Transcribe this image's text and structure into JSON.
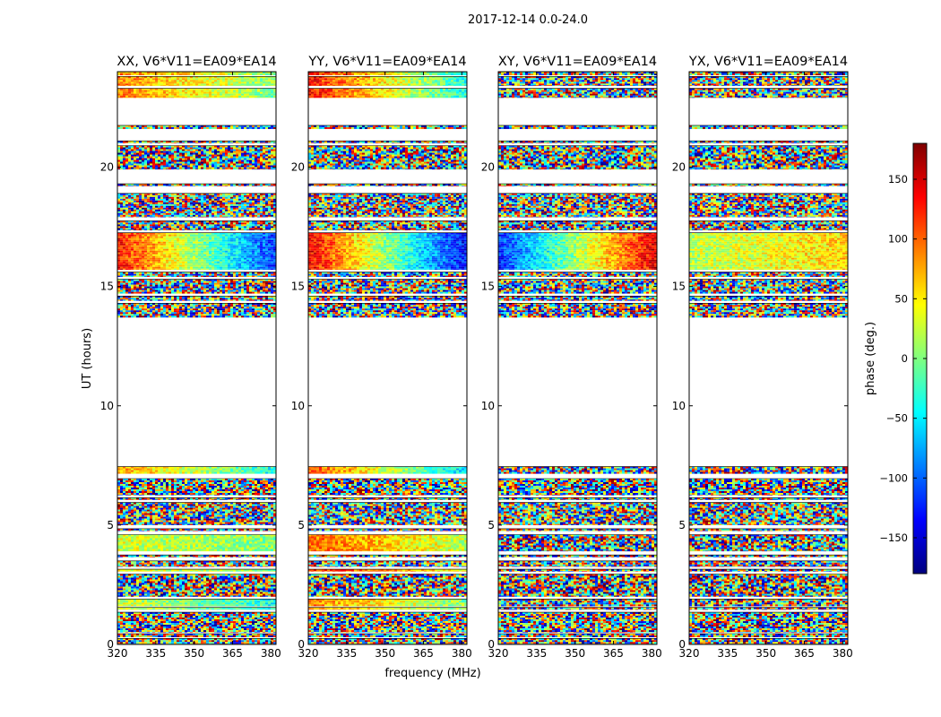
{
  "figure": {
    "suptitle": "2017-12-14 0.0-24.0",
    "xlabel": "frequency (MHz)",
    "ylabel": "UT (hours)"
  },
  "chart_data": {
    "type": "heatmap",
    "x": {
      "label": "frequency (MHz)",
      "range": [
        320,
        382
      ],
      "ticks": [
        320,
        335,
        350,
        365,
        380
      ]
    },
    "y": {
      "label": "UT (hours)",
      "range": [
        0,
        24
      ],
      "ticks": [
        0,
        5,
        10,
        15,
        20
      ]
    },
    "colorbar": {
      "label": "phase (deg.)",
      "range": [
        -180,
        180
      ],
      "ticks": [
        -150,
        -100,
        -50,
        0,
        50,
        100,
        150
      ],
      "tick_labels": [
        "−150",
        "−100",
        "−50",
        "0",
        "50",
        "100",
        "150"
      ],
      "colormap": [
        "#00007f",
        "#0000ff",
        "#007fff",
        "#00ffff",
        "#7fff7f",
        "#ffff00",
        "#ff7f00",
        "#ff0000",
        "#7f0000"
      ]
    },
    "panels": [
      {
        "title": "XX, V6*V11=EA09*EA14",
        "coherent_bands": [
          [
            16.0,
            17.2,
            130,
            -120
          ],
          [
            22.9,
            24.0,
            90,
            0
          ],
          [
            1.3,
            1.9,
            30,
            -40
          ],
          [
            3.0,
            3.2,
            40,
            0
          ],
          [
            4.0,
            4.6,
            30,
            0
          ],
          [
            7.2,
            7.5,
            80,
            -40
          ]
        ]
      },
      {
        "title": "YY, V6*V11=EA09*EA14",
        "coherent_bands": [
          [
            16.0,
            17.2,
            140,
            -140
          ],
          [
            22.9,
            24.0,
            130,
            -40
          ],
          [
            1.3,
            1.9,
            90,
            0
          ],
          [
            3.0,
            3.2,
            120,
            40
          ],
          [
            4.0,
            4.6,
            100,
            20
          ],
          [
            7.2,
            7.5,
            110,
            -60
          ]
        ]
      },
      {
        "title": "XY, V6*V11=EA09*EA14",
        "coherent_bands": [
          [
            16.0,
            16.6,
            -120,
            150
          ]
        ]
      },
      {
        "title": "YX, V6*V11=EA09*EA14",
        "coherent_bands": [
          [
            16.2,
            17.0,
            20,
            60
          ]
        ]
      }
    ],
    "data_row_ranges": [
      [
        0.0,
        0.25
      ],
      [
        0.3,
        0.45
      ],
      [
        0.5,
        1.35
      ],
      [
        1.45,
        1.55
      ],
      [
        1.6,
        1.9
      ],
      [
        2.0,
        2.95
      ],
      [
        3.05,
        3.15
      ],
      [
        3.25,
        3.5
      ],
      [
        3.65,
        3.75
      ],
      [
        3.9,
        4.6
      ],
      [
        4.75,
        4.85
      ],
      [
        5.0,
        5.95
      ],
      [
        6.05,
        6.15
      ],
      [
        6.25,
        6.95
      ],
      [
        7.15,
        7.45
      ],
      [
        13.7,
        14.3
      ],
      [
        14.4,
        14.6
      ],
      [
        14.7,
        15.3
      ],
      [
        15.4,
        15.6
      ],
      [
        15.7,
        17.25
      ],
      [
        17.35,
        17.75
      ],
      [
        17.9,
        18.9
      ],
      [
        19.2,
        19.3
      ],
      [
        19.9,
        20.9
      ],
      [
        21.0,
        21.1
      ],
      [
        21.6,
        21.75
      ],
      [
        22.9,
        23.3
      ],
      [
        23.4,
        23.8
      ],
      [
        23.85,
        24.0
      ]
    ]
  }
}
